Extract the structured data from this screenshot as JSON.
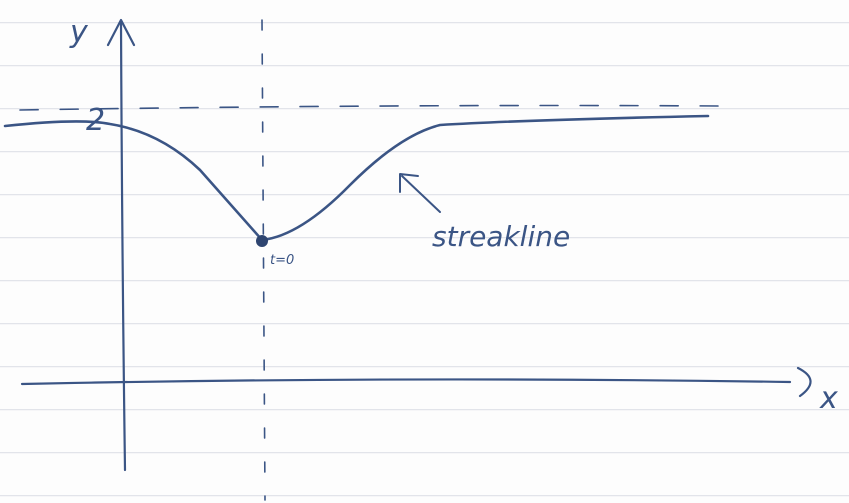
{
  "axes": {
    "y_label": "y",
    "x_label": "x"
  },
  "annotations": {
    "level": "2",
    "time": "t=0",
    "curve": "streakline"
  }
}
